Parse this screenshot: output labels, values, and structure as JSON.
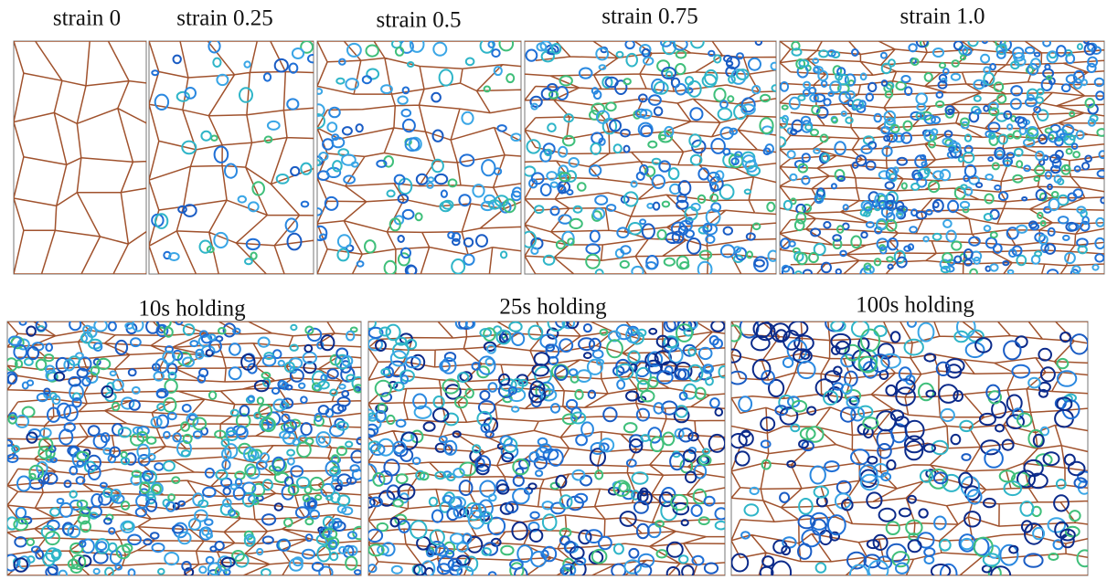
{
  "panels": [
    {
      "label": "strain 0"
    },
    {
      "label": "strain 0.25"
    },
    {
      "label": "strain 0.5"
    },
    {
      "label": "strain 0.75"
    },
    {
      "label": "strain 1.0"
    },
    {
      "label": "10s holding"
    },
    {
      "label": "25s holding"
    },
    {
      "label": "100s holding"
    }
  ]
}
